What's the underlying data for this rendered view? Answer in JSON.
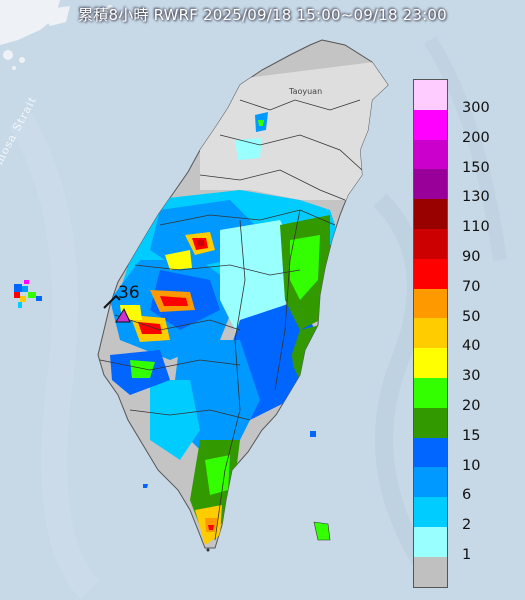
{
  "title": "累積8小時 RWRF 2025/09/18 15:00~09/18 23:00",
  "strait_label": "Formosa Strait",
  "city_label": "Taoyuan",
  "station": {
    "value": "36",
    "marker_color": "#cc33cc"
  },
  "legend": [
    {
      "label": "300",
      "color": "#ffccff"
    },
    {
      "label": "200",
      "color": "#ff00ff"
    },
    {
      "label": "150",
      "color": "#cc00cc"
    },
    {
      "label": "130",
      "color": "#990099"
    },
    {
      "label": "110",
      "color": "#990000"
    },
    {
      "label": "90",
      "color": "#cc0000"
    },
    {
      "label": "70",
      "color": "#ff0000"
    },
    {
      "label": "50",
      "color": "#ff9900"
    },
    {
      "label": "40",
      "color": "#ffcc00"
    },
    {
      "label": "30",
      "color": "#ffff00"
    },
    {
      "label": "20",
      "color": "#33ff00"
    },
    {
      "label": "15",
      "color": "#339900"
    },
    {
      "label": "10",
      "color": "#0066ff"
    },
    {
      "label": "6",
      "color": "#0099ff"
    },
    {
      "label": "2",
      "color": "#00ccff"
    },
    {
      "label": "1",
      "color": "#99ffff"
    },
    {
      "label": "",
      "color": "#c0c0c0"
    }
  ],
  "colors": {
    "sea": "#c9d9e6",
    "land_base": "#c4c4c4",
    "cloud": "#f0f3f6"
  }
}
